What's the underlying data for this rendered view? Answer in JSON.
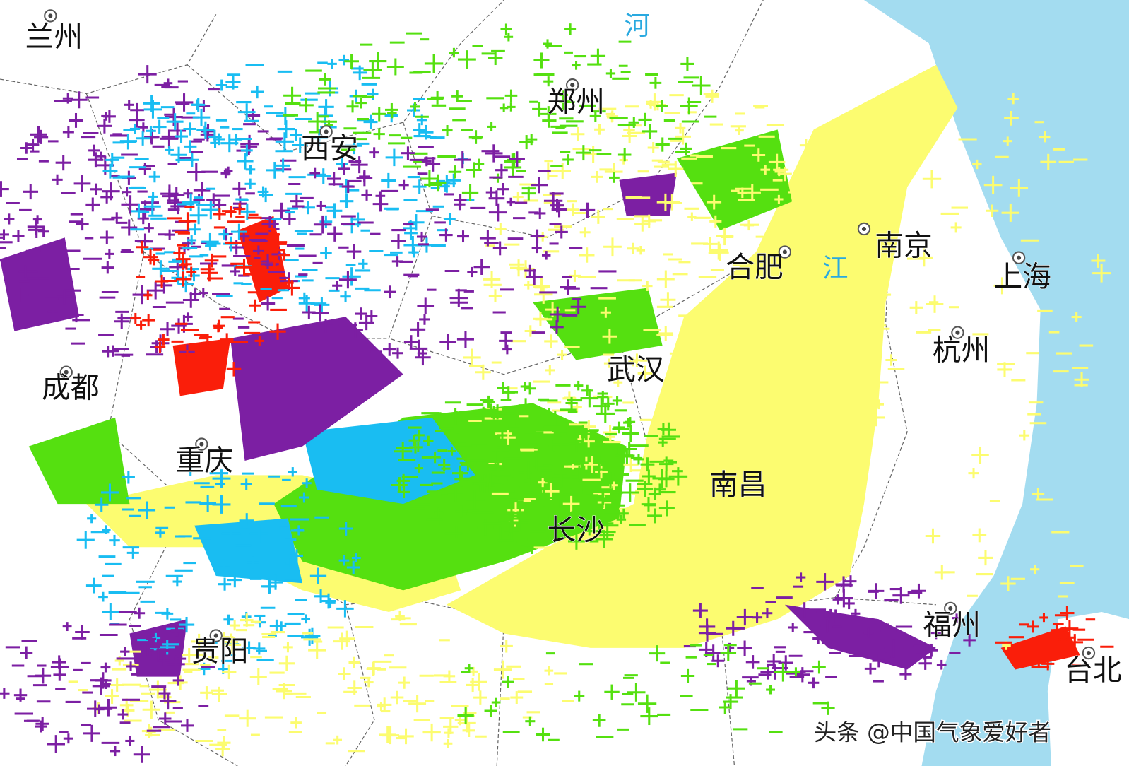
{
  "cities": [
    "兰州",
    "郑州",
    "西安",
    "合肥",
    "南京",
    "上海",
    "杭州",
    "武汉",
    "成都",
    "重庆",
    "南昌",
    "长沙",
    "贵阳",
    "福州",
    "台北"
  ],
  "rivers": [
    "河",
    "江"
  ],
  "watermark": "头条 @中国气象爱好者"
}
